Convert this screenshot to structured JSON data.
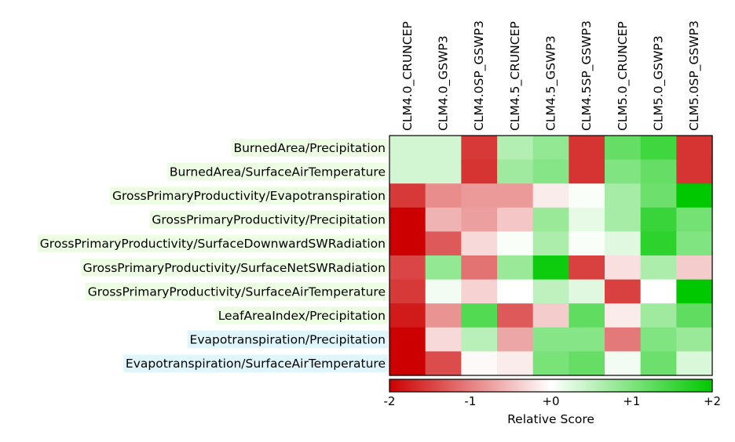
{
  "chart_data": {
    "type": "heatmap",
    "title": "",
    "columns": [
      "CLM4.0_CRUNCEP",
      "CLM4.0_GSWP3",
      "CLM4.0SP_GSWP3",
      "CLM4.5_CRUNCEP",
      "CLM4.5_GSWP3",
      "CLM4.5SP_GSWP3",
      "CLM5.0_CRUNCEP",
      "CLM5.0_GSWP3",
      "CLM5.0SP_GSWP3"
    ],
    "rows": [
      {
        "label": "BurnedArea/Precipitation",
        "highlight": "#ecfde3",
        "values": [
          0.35,
          0.35,
          -1.55,
          0.6,
          0.85,
          -1.6,
          1.2,
          1.5,
          -1.6
        ]
      },
      {
        "label": "BurnedArea/SurfaceAirTemperature",
        "highlight": "#ecfde3",
        "values": [
          0.35,
          0.35,
          -1.6,
          0.75,
          0.95,
          -1.6,
          1.0,
          1.2,
          -1.6
        ]
      },
      {
        "label": "GrossPrimaryProductivity/Evapotranspiration",
        "highlight": "#ecfde3",
        "values": [
          -1.55,
          -0.9,
          -0.8,
          -0.8,
          -0.15,
          0.05,
          0.7,
          1.15,
          2.0
        ]
      },
      {
        "label": "GrossPrimaryProductivity/Precipitation",
        "highlight": "#ecfde3",
        "values": [
          -2.0,
          -0.6,
          -0.75,
          -0.45,
          0.8,
          0.2,
          0.7,
          1.55,
          1.1
        ]
      },
      {
        "label": "GrossPrimaryProductivity/SurfaceDownwardSWRadiation",
        "highlight": "#ecfde3",
        "values": [
          -2.0,
          -1.3,
          -0.3,
          0.05,
          0.65,
          0.05,
          0.25,
          1.65,
          1.0
        ]
      },
      {
        "label": "GrossPrimaryProductivity/SurfaceNetSWRadiation",
        "highlight": "#ecfde3",
        "values": [
          -1.45,
          0.85,
          -1.1,
          0.8,
          1.9,
          -1.5,
          -0.25,
          0.65,
          -0.4
        ]
      },
      {
        "label": "GrossPrimaryProductivity/SurfaceAirTemperature",
        "highlight": "#ecfde3",
        "values": [
          -1.55,
          0.1,
          -0.35,
          0.0,
          0.5,
          0.25,
          -1.5,
          0.0,
          2.0
        ]
      },
      {
        "label": "LeafAreaIndex/Precipitation",
        "highlight": "#ecfde3",
        "values": [
          -1.8,
          -0.85,
          1.35,
          -1.3,
          -0.4,
          1.25,
          -0.15,
          0.75,
          1.25
        ]
      },
      {
        "label": "Evapotranspiration/Precipitation",
        "highlight": "#e0f6fd",
        "values": [
          -2.0,
          -0.3,
          0.55,
          -0.7,
          0.95,
          0.95,
          -1.05,
          1.0,
          0.8
        ]
      },
      {
        "label": "Evapotranspiration/SurfaceAirTemperature",
        "highlight": "#e0f6fd",
        "values": [
          -2.0,
          -1.4,
          -0.05,
          -0.15,
          1.05,
          1.2,
          0.1,
          1.15,
          0.3
        ]
      }
    ],
    "colorbar": {
      "label": "Relative Score",
      "range": [
        -2,
        2
      ],
      "ticks": [
        {
          "value": -2,
          "label": "-2"
        },
        {
          "value": -1,
          "label": "-1"
        },
        {
          "value": 0,
          "label": "+0"
        },
        {
          "value": 1,
          "label": "+1"
        },
        {
          "value": 2,
          "label": "+2"
        }
      ],
      "colors": {
        "low": "#cc0000",
        "mid": "#ffffff",
        "high": "#00c800"
      }
    }
  }
}
